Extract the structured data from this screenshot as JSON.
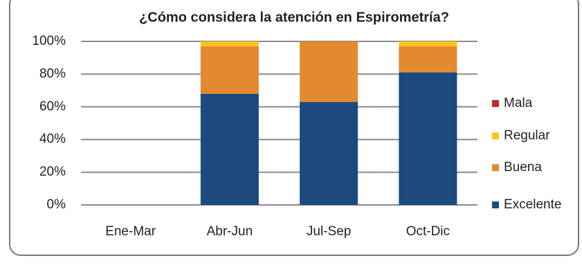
{
  "chart_data": {
    "type": "stacked_bar",
    "title": "¿Cómo considera la atención  en Espirometría?",
    "categories": [
      "Ene-Mar",
      "Abr-Jun",
      "Jul-Sep",
      "Oct-Dic"
    ],
    "series": [
      {
        "name": "Excelente",
        "color": "#1b4a7e",
        "values": [
          0,
          68,
          63,
          81
        ]
      },
      {
        "name": "Buena",
        "color": "#e3892f",
        "values": [
          0,
          29,
          37,
          16
        ]
      },
      {
        "name": "Regular",
        "color": "#f9c61a",
        "values": [
          0,
          3,
          0,
          3
        ]
      },
      {
        "name": "Mala",
        "color": "#c0282e",
        "values": [
          0,
          0,
          0,
          0
        ]
      }
    ],
    "ylim": [
      0,
      100
    ],
    "yticks": [
      {
        "value": 0,
        "label": "0%"
      },
      {
        "value": 20,
        "label": "20%"
      },
      {
        "value": 40,
        "label": "40%"
      },
      {
        "value": 60,
        "label": "60%"
      },
      {
        "value": 80,
        "label": "80%"
      },
      {
        "value": 100,
        "label": "100%"
      }
    ],
    "grid": true,
    "legend": "right"
  }
}
